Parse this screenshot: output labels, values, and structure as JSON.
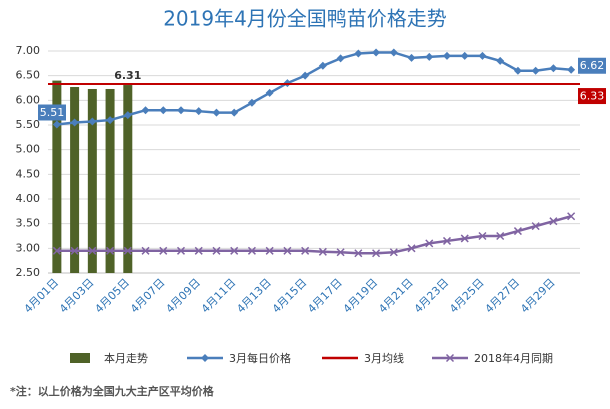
{
  "chart_data": {
    "type": "combo",
    "title": "2019年4月份全国鸭苗价格走势",
    "note": "*注：以上价格为全国九大主产区平均价格",
    "categories": [
      "4月01日",
      null,
      "4月03日",
      null,
      "4月05日",
      null,
      "4月07日",
      null,
      "4月09日",
      null,
      "4月11日",
      null,
      "4月13日",
      null,
      "4月15日",
      null,
      "4月17日",
      null,
      "4月19日",
      null,
      "4月21日",
      null,
      "4月23日",
      null,
      "4月25日",
      null,
      "4月27日",
      null,
      "4月29日",
      null
    ],
    "ylim": [
      2.5,
      7.0
    ],
    "yticks": [
      {
        "value": 2.5,
        "label": "2.50"
      },
      {
        "value": 3.0,
        "label": "3.00"
      },
      {
        "value": 3.5,
        "label": "3.50"
      },
      {
        "value": 4.0,
        "label": "4.00"
      },
      {
        "value": 4.5,
        "label": "4.50"
      },
      {
        "value": 5.0,
        "label": "5.00"
      },
      {
        "value": 5.5,
        "label": "5.50"
      },
      {
        "value": 6.0,
        "label": "6.00"
      },
      {
        "value": 6.5,
        "label": "6.50"
      },
      {
        "value": 7.0,
        "label": "7.00"
      }
    ],
    "grid": true,
    "series": [
      {
        "name": "本月走势",
        "type": "bar",
        "color": "#4f6228",
        "values": [
          6.4,
          6.27,
          6.23,
          6.23,
          6.31,
          null,
          null,
          null,
          null,
          null,
          null,
          null,
          null,
          null,
          null,
          null,
          null,
          null,
          null,
          null,
          null,
          null,
          null,
          null,
          null,
          null,
          null,
          null,
          null,
          null
        ],
        "value_labels": [
          null,
          null,
          null,
          null,
          "6.31",
          null,
          null,
          null,
          null,
          null,
          null,
          null,
          null,
          null,
          null,
          null,
          null,
          null,
          null,
          null,
          null,
          null,
          null,
          null,
          null,
          null,
          null,
          null,
          null,
          null
        ]
      },
      {
        "name": "3月每日价格",
        "type": "line",
        "marker": "diamond",
        "color": "#4a7ebb",
        "values": [
          5.51,
          5.55,
          5.57,
          5.6,
          5.7,
          5.8,
          5.8,
          5.8,
          5.78,
          5.75,
          5.75,
          5.95,
          6.15,
          6.35,
          6.5,
          6.7,
          6.85,
          6.95,
          6.97,
          6.97,
          6.86,
          6.88,
          6.9,
          6.9,
          6.9,
          6.8,
          6.6,
          6.6,
          6.65,
          6.62
        ],
        "value_labels": [
          "5.51",
          null,
          null,
          null,
          null,
          null,
          null,
          null,
          null,
          null,
          null,
          null,
          null,
          null,
          null,
          null,
          null,
          null,
          null,
          null,
          null,
          null,
          null,
          null,
          null,
          null,
          null,
          null,
          null,
          "6.62"
        ]
      },
      {
        "name": "3月均线",
        "type": "line",
        "marker": "none",
        "color": "#c00000",
        "values": [
          6.33,
          6.33,
          6.33,
          6.33,
          6.33,
          6.33,
          6.33,
          6.33,
          6.33,
          6.33,
          6.33,
          6.33,
          6.33,
          6.33,
          6.33,
          6.33,
          6.33,
          6.33,
          6.33,
          6.33,
          6.33,
          6.33,
          6.33,
          6.33,
          6.33,
          6.33,
          6.33,
          6.33,
          6.33,
          6.33
        ],
        "value_labels": [
          null,
          null,
          null,
          null,
          null,
          null,
          null,
          null,
          null,
          null,
          null,
          null,
          null,
          null,
          null,
          null,
          null,
          null,
          null,
          null,
          null,
          null,
          null,
          null,
          null,
          null,
          null,
          null,
          null,
          "6.33"
        ]
      },
      {
        "name": "2018年4月同期",
        "type": "line",
        "marker": "x",
        "color": "#8064a2",
        "values": [
          2.95,
          2.95,
          2.95,
          2.95,
          2.95,
          2.95,
          2.95,
          2.95,
          2.95,
          2.95,
          2.95,
          2.95,
          2.95,
          2.95,
          2.95,
          2.93,
          2.92,
          2.9,
          2.9,
          2.92,
          3.0,
          3.1,
          3.15,
          3.2,
          3.25,
          3.25,
          3.35,
          3.45,
          3.55,
          3.65
        ]
      }
    ]
  }
}
